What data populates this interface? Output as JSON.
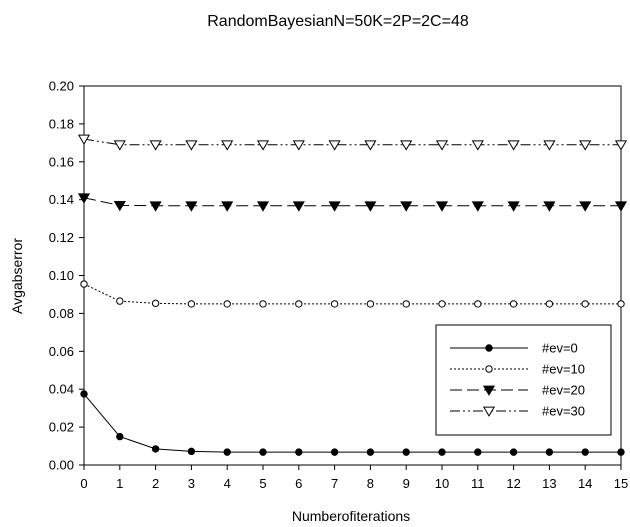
{
  "chart_data": {
    "type": "line",
    "title": "RandomBayesianN=50K=2P=2C=48",
    "xlabel": "Numberofiterations",
    "ylabel": "Avgabserror",
    "xlim": [
      0,
      15
    ],
    "ylim": [
      0,
      0.2
    ],
    "grid": false,
    "legend_position": "lower-right",
    "x": [
      0,
      1,
      2,
      3,
      4,
      5,
      6,
      7,
      8,
      9,
      10,
      11,
      12,
      13,
      14,
      15
    ],
    "x_tick_labels": [
      "0",
      "1",
      "2",
      "3",
      "4",
      "5",
      "6",
      "7",
      "8",
      "9",
      "10",
      "11",
      "12",
      "13",
      "14",
      "15"
    ],
    "y_ticks": [
      0,
      0.02,
      0.04,
      0.06,
      0.08,
      0.1,
      0.12,
      0.14,
      0.16,
      0.18,
      0.2
    ],
    "y_tick_labels": [
      "0.00",
      "0.02",
      "0.04",
      "0.06",
      "0.08",
      "0.10",
      "0.12",
      "0.14",
      "0.16",
      "0.18",
      "0.20"
    ],
    "series": [
      {
        "name": "#ev=0",
        "dash": "solid",
        "marker": "filled-circle",
        "values": [
          0.0375,
          0.015,
          0.0085,
          0.0072,
          0.0068,
          0.0068,
          0.0068,
          0.0068,
          0.0068,
          0.0068,
          0.0068,
          0.0068,
          0.0068,
          0.0068,
          0.0068,
          0.0068
        ]
      },
      {
        "name": "#ev=10",
        "dash": "dotted",
        "marker": "open-circle",
        "values": [
          0.0955,
          0.0865,
          0.0853,
          0.085,
          0.085,
          0.085,
          0.085,
          0.085,
          0.085,
          0.085,
          0.085,
          0.085,
          0.085,
          0.085,
          0.085,
          0.085
        ]
      },
      {
        "name": "#ev=20",
        "dash": "long-dash",
        "marker": "filled-triangle-down",
        "values": [
          0.141,
          0.137,
          0.1368,
          0.1368,
          0.1368,
          0.1368,
          0.1368,
          0.1368,
          0.1368,
          0.1368,
          0.1368,
          0.1368,
          0.1368,
          0.1368,
          0.1368,
          0.1368
        ]
      },
      {
        "name": "#ev=30",
        "dash": "dash-dot-dot",
        "marker": "open-triangle-down",
        "values": [
          0.172,
          0.169,
          0.169,
          0.169,
          0.169,
          0.169,
          0.169,
          0.169,
          0.169,
          0.169,
          0.169,
          0.169,
          0.169,
          0.169,
          0.169,
          0.169
        ]
      }
    ]
  }
}
